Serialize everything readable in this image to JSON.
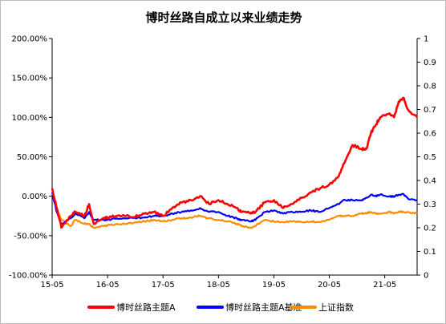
{
  "chart_data": {
    "type": "line",
    "title": "博时丝路自成立以来业绩走势",
    "xlabel": "",
    "ylabel": "",
    "x_ticks": [
      "15-05",
      "16-05",
      "17-05",
      "18-05",
      "19-05",
      "20-05",
      "21-05"
    ],
    "x_range": [
      "2015-05",
      "2021-12"
    ],
    "y_left": {
      "range": [
        -100,
        200
      ],
      "unit": "%",
      "ticks": [
        "200.00%",
        "150.00%",
        "100.00%",
        "50.00%",
        "0.00%",
        "-50.00%",
        "-100.00%"
      ]
    },
    "y_right": {
      "range": [
        0,
        1
      ],
      "ticks": [
        "1",
        "0.9",
        "0.8",
        "0.7",
        "0.6",
        "0.5",
        "0.4",
        "0.3",
        "0.2",
        "0.1",
        "0"
      ]
    },
    "grid": false,
    "legend_position": "bottom",
    "series": [
      {
        "name": "博时丝路主题A",
        "color": "#ff0000",
        "x": [
          "2015-05",
          "2015-06",
          "2015-07",
          "2015-09",
          "2015-10",
          "2015-12",
          "2016-01",
          "2016-02",
          "2016-04",
          "2016-05",
          "2016-07",
          "2016-09",
          "2016-11",
          "2017-01",
          "2017-03",
          "2017-05",
          "2017-07",
          "2017-09",
          "2017-11",
          "2018-01",
          "2018-03",
          "2018-05",
          "2018-07",
          "2018-09",
          "2018-10",
          "2018-12",
          "2019-01",
          "2019-03",
          "2019-05",
          "2019-07",
          "2019-09",
          "2019-11",
          "2020-01",
          "2020-03",
          "2020-05",
          "2020-07",
          "2020-08",
          "2020-10",
          "2020-12",
          "2021-01",
          "2021-02",
          "2021-03",
          "2021-04",
          "2021-06",
          "2021-07",
          "2021-08",
          "2021-09",
          "2021-10",
          "2021-12"
        ],
        "y": [
          10,
          -15,
          -40,
          -25,
          -20,
          -25,
          -10,
          -35,
          -28,
          -27,
          -25,
          -25,
          -26,
          -22,
          -20,
          -25,
          -15,
          -8,
          -5,
          0,
          -10,
          -5,
          -10,
          -15,
          -20,
          -22,
          -20,
          -8,
          -5,
          -15,
          -10,
          -2,
          5,
          10,
          15,
          25,
          40,
          65,
          60,
          60,
          80,
          90,
          100,
          105,
          100,
          120,
          125,
          110,
          100
        ],
        "y_axis": "left"
      },
      {
        "name": "博时丝路主题A基准",
        "color": "#0000ff",
        "x": [
          "2015-05",
          "2015-06",
          "2015-07",
          "2015-09",
          "2015-10",
          "2015-12",
          "2016-01",
          "2016-02",
          "2016-04",
          "2016-05",
          "2016-07",
          "2016-09",
          "2016-11",
          "2017-01",
          "2017-03",
          "2017-05",
          "2017-07",
          "2017-09",
          "2017-11",
          "2018-01",
          "2018-03",
          "2018-05",
          "2018-07",
          "2018-09",
          "2018-10",
          "2018-12",
          "2019-01",
          "2019-03",
          "2019-05",
          "2019-07",
          "2019-09",
          "2019-11",
          "2020-01",
          "2020-03",
          "2020-05",
          "2020-07",
          "2020-08",
          "2020-10",
          "2020-12",
          "2021-01",
          "2021-02",
          "2021-03",
          "2021-04",
          "2021-06",
          "2021-07",
          "2021-08",
          "2021-09",
          "2021-10",
          "2021-12"
        ],
        "y": [
          5,
          -20,
          -35,
          -28,
          -22,
          -28,
          -20,
          -30,
          -30,
          -30,
          -28,
          -28,
          -28,
          -27,
          -25,
          -25,
          -22,
          -20,
          -18,
          -15,
          -20,
          -20,
          -25,
          -28,
          -30,
          -32,
          -30,
          -20,
          -18,
          -22,
          -20,
          -20,
          -18,
          -20,
          -15,
          -10,
          -5,
          -5,
          -5,
          -2,
          2,
          0,
          2,
          0,
          0,
          2,
          3,
          -3,
          -5
        ],
        "y_axis": "left"
      },
      {
        "name": "上证指数",
        "color": "#ff8c00",
        "x": [
          "2015-05",
          "2015-06",
          "2015-07",
          "2015-09",
          "2015-10",
          "2015-12",
          "2016-01",
          "2016-02",
          "2016-04",
          "2016-05",
          "2016-07",
          "2016-09",
          "2016-11",
          "2017-01",
          "2017-03",
          "2017-05",
          "2017-07",
          "2017-09",
          "2017-11",
          "2018-01",
          "2018-03",
          "2018-05",
          "2018-07",
          "2018-09",
          "2018-10",
          "2018-12",
          "2019-01",
          "2019-03",
          "2019-05",
          "2019-07",
          "2019-09",
          "2019-11",
          "2020-01",
          "2020-03",
          "2020-05",
          "2020-07",
          "2020-08",
          "2020-10",
          "2020-12",
          "2021-01",
          "2021-02",
          "2021-03",
          "2021-04",
          "2021-06",
          "2021-07",
          "2021-08",
          "2021-09",
          "2021-10",
          "2021-12"
        ],
        "y": [
          5,
          -15,
          -30,
          -38,
          -30,
          -35,
          -35,
          -40,
          -38,
          -37,
          -35,
          -35,
          -33,
          -32,
          -30,
          -32,
          -30,
          -28,
          -27,
          -25,
          -28,
          -30,
          -32,
          -35,
          -38,
          -40,
          -38,
          -30,
          -32,
          -33,
          -32,
          -33,
          -32,
          -33,
          -30,
          -25,
          -25,
          -25,
          -22,
          -22,
          -20,
          -22,
          -22,
          -20,
          -22,
          -20,
          -20,
          -20,
          -22
        ],
        "y_axis": "left"
      }
    ]
  }
}
